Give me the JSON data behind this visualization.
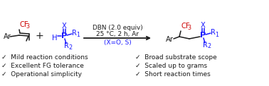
{
  "bg_color": "#ffffff",
  "red_color": "#cc0000",
  "blue_color": "#1a1aff",
  "black_color": "#1a1a1a",
  "conditions_line1": "DBN (2.0 equiv)",
  "conditions_line2": "25 °C, 2 h, Ar",
  "conditions_line3": "(X=O, S)",
  "bullet_left": [
    "✓  Mild reaction conditions",
    "✓  Excellent FG tolerance",
    "✓  Operational simplicity"
  ],
  "bullet_right": [
    "✓  Broad substrate scope",
    "✓  Scaled up to grams",
    "✓  Short reaction times"
  ],
  "figsize": [
    3.78,
    1.22
  ],
  "dpi": 100
}
